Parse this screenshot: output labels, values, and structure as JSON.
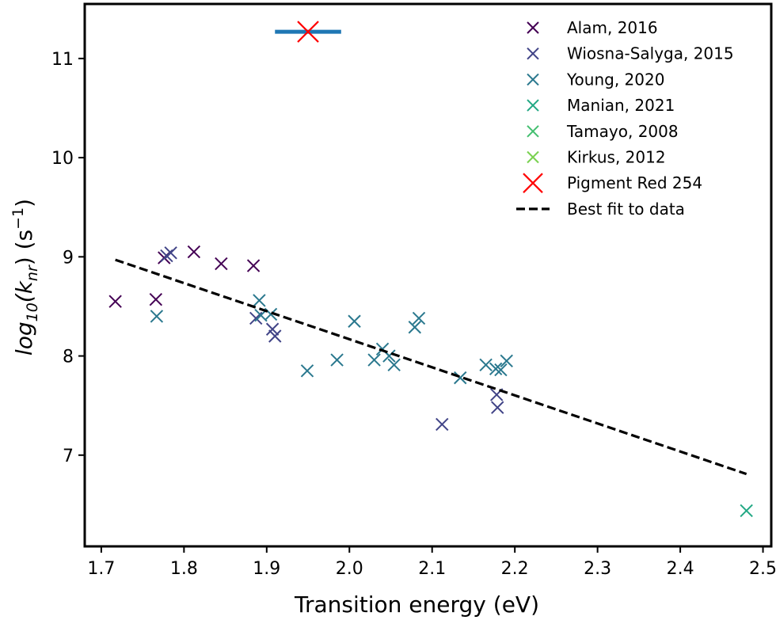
{
  "chart_data": {
    "type": "scatter",
    "xlabel": "Transition energy (eV)",
    "ylabel_parts": {
      "base": "log",
      "base_sub": "10",
      "open": "(k",
      "k_sub": "nr",
      "close": ") (s",
      "exp": "−1",
      "end": ")"
    },
    "xlim": [
      1.68,
      2.51
    ],
    "ylim": [
      6.08,
      11.55
    ],
    "xticks": [
      1.7,
      1.8,
      1.9,
      2.0,
      2.1,
      2.2,
      2.3,
      2.4,
      2.5
    ],
    "xtick_labels": [
      "1.7",
      "1.8",
      "1.9",
      "2.0",
      "2.1",
      "2.2",
      "2.3",
      "2.4",
      "2.5"
    ],
    "yticks": [
      7,
      8,
      9,
      10,
      11
    ],
    "ytick_labels": [
      "7",
      "8",
      "9",
      "10",
      "11"
    ],
    "grid": false,
    "legend_position": "top-right",
    "series": [
      {
        "name": "Alam, 2016",
        "color": "#440154",
        "marker": "x",
        "points": [
          [
            1.717,
            8.55
          ],
          [
            1.766,
            8.57
          ],
          [
            1.776,
            8.99
          ],
          [
            1.812,
            9.05
          ],
          [
            1.845,
            8.93
          ],
          [
            1.884,
            8.91
          ]
        ]
      },
      {
        "name": "Wiosna-Salyga, 2015",
        "color": "#414487",
        "marker": "x",
        "points": [
          [
            1.779,
            9.01
          ],
          [
            1.784,
            9.04
          ],
          [
            1.887,
            8.38
          ],
          [
            1.907,
            8.27
          ],
          [
            1.91,
            8.2
          ],
          [
            2.112,
            7.31
          ],
          [
            2.178,
            7.61
          ],
          [
            2.179,
            7.48
          ]
        ]
      },
      {
        "name": "Young, 2020",
        "color": "#2a788e",
        "marker": "x",
        "points": [
          [
            1.767,
            8.4
          ],
          [
            1.891,
            8.56
          ],
          [
            1.893,
            8.41
          ],
          [
            1.905,
            8.42
          ],
          [
            1.949,
            7.85
          ],
          [
            1.985,
            7.96
          ],
          [
            2.006,
            8.35
          ],
          [
            2.03,
            7.96
          ],
          [
            2.04,
            8.07
          ],
          [
            2.048,
            8.0
          ],
          [
            2.054,
            7.91
          ],
          [
            2.079,
            8.29
          ],
          [
            2.084,
            8.38
          ],
          [
            2.134,
            7.78
          ],
          [
            2.165,
            7.91
          ],
          [
            2.177,
            7.87
          ],
          [
            2.183,
            7.86
          ],
          [
            2.19,
            7.95
          ]
        ]
      },
      {
        "name": "Manian, 2021",
        "color": "#22a884",
        "marker": "x",
        "points": [
          [
            2.48,
            6.44
          ]
        ]
      },
      {
        "name": "Tamayo, 2008",
        "color": "#44bf70",
        "marker": "x",
        "points": []
      },
      {
        "name": "Kirkus, 2012",
        "color": "#7ad151",
        "marker": "x",
        "points": []
      },
      {
        "name": "Pigment Red 254",
        "color": "#ff0000",
        "marker": "X",
        "points": [
          [
            1.95,
            11.27
          ]
        ],
        "error_x": 0.04,
        "errorbar_color": "#1f77b4"
      },
      {
        "name": "Best fit to data",
        "color": "#000000",
        "style": "dashed-line",
        "line": [
          [
            1.717,
            8.97
          ],
          [
            2.48,
            6.81
          ]
        ]
      }
    ]
  }
}
